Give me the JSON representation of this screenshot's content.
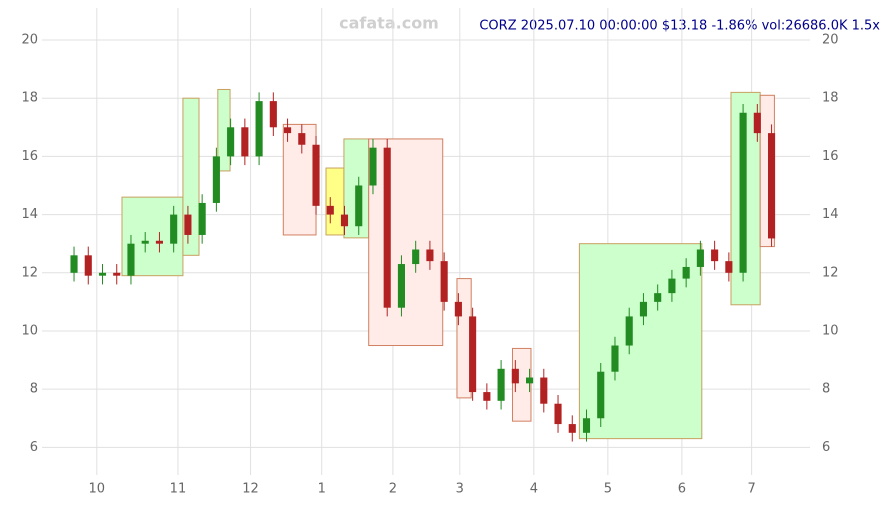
{
  "chart_data": {
    "type": "candlestick",
    "title": "CORZ 2025.07.10 00:00:00 $13.18 -1.86% vol:26686.0K 1.5x",
    "watermark": "cafata.com",
    "x": [
      0,
      1,
      2,
      3,
      4,
      5,
      6,
      7,
      8,
      9,
      10,
      11,
      12,
      13,
      14,
      15,
      16,
      17,
      18,
      19,
      20,
      21,
      22,
      23,
      24,
      25,
      26,
      27,
      28,
      29,
      30,
      31,
      32,
      33,
      34,
      35,
      36,
      37,
      38,
      39,
      40,
      41,
      42,
      43,
      44,
      45,
      46,
      47,
      48,
      49
    ],
    "open": [
      12.0,
      12.6,
      11.9,
      12.0,
      11.9,
      13.0,
      13.1,
      13.0,
      14.0,
      13.3,
      14.4,
      16.0,
      17.0,
      16.0,
      17.9,
      17.0,
      16.8,
      16.4,
      14.3,
      14.0,
      13.6,
      15.0,
      16.3,
      10.8,
      12.3,
      12.8,
      12.4,
      11.0,
      10.5,
      7.9,
      7.6,
      8.7,
      8.2,
      8.4,
      7.5,
      6.8,
      6.5,
      7.0,
      8.6,
      9.5,
      10.5,
      11.0,
      11.3,
      11.8,
      12.2,
      12.8,
      12.4,
      12.0,
      17.5,
      16.8
    ],
    "high": [
      12.9,
      12.9,
      12.3,
      12.3,
      13.3,
      13.4,
      13.4,
      14.3,
      14.3,
      14.7,
      16.3,
      17.3,
      17.3,
      18.2,
      18.2,
      17.3,
      17.1,
      16.7,
      14.6,
      14.3,
      15.3,
      16.6,
      16.6,
      12.6,
      13.1,
      13.1,
      12.7,
      11.3,
      10.8,
      8.2,
      9.0,
      9.0,
      8.7,
      8.7,
      7.8,
      7.1,
      7.3,
      8.9,
      9.8,
      10.8,
      11.3,
      11.6,
      12.1,
      12.5,
      13.1,
      13.1,
      12.7,
      17.8,
      17.8,
      17.1
    ],
    "low": [
      11.7,
      11.6,
      11.6,
      11.6,
      11.6,
      12.7,
      12.7,
      12.7,
      13.0,
      13.0,
      14.1,
      15.7,
      15.7,
      15.7,
      16.7,
      16.5,
      16.1,
      14.0,
      13.7,
      13.3,
      13.3,
      14.7,
      10.5,
      10.5,
      12.0,
      12.1,
      10.7,
      10.2,
      7.6,
      7.3,
      7.3,
      7.9,
      7.9,
      7.2,
      6.5,
      6.2,
      6.2,
      6.7,
      8.3,
      9.2,
      10.2,
      10.7,
      11.0,
      11.5,
      11.9,
      12.1,
      11.7,
      11.7,
      16.5,
      12.9
    ],
    "close": [
      12.6,
      11.9,
      12.0,
      11.9,
      13.0,
      13.1,
      13.0,
      14.0,
      13.3,
      14.4,
      16.0,
      17.0,
      16.0,
      17.9,
      17.0,
      16.8,
      16.4,
      14.3,
      14.0,
      13.6,
      15.0,
      16.3,
      10.8,
      12.3,
      12.8,
      12.4,
      11.0,
      10.5,
      7.9,
      7.6,
      8.7,
      8.2,
      8.4,
      7.5,
      6.8,
      6.5,
      7.0,
      8.6,
      9.5,
      10.5,
      11.0,
      11.3,
      11.8,
      12.2,
      12.8,
      12.4,
      12.0,
      17.5,
      16.8,
      13.18
    ],
    "up_color": "#228b22",
    "down_color": "#b22222",
    "xlim": [
      -2.25,
      51.7
    ],
    "ylim": [
      5.05,
      21.1
    ],
    "xticks": [
      {
        "value": 1.6,
        "label": "10"
      },
      {
        "value": 7.3,
        "label": "11"
      },
      {
        "value": 12.4,
        "label": "12"
      },
      {
        "value": 17.4,
        "label": "1"
      },
      {
        "value": 22.4,
        "label": "2"
      },
      {
        "value": 27.1,
        "label": "3"
      },
      {
        "value": 32.3,
        "label": "4"
      },
      {
        "value": 37.5,
        "label": "5"
      },
      {
        "value": 42.7,
        "label": "6"
      },
      {
        "value": 47.6,
        "label": "7"
      }
    ],
    "yticks": [
      6,
      8,
      10,
      12,
      14,
      16,
      18,
      20
    ],
    "grid": true,
    "zones": [
      {
        "x": [
          3.37,
          7.65
        ],
        "y": [
          11.9,
          14.6
        ],
        "color": "green"
      },
      {
        "x": [
          7.65,
          8.78
        ],
        "y": [
          12.6,
          18.0
        ],
        "color": "green"
      },
      {
        "x": [
          10.1,
          10.96
        ],
        "y": [
          15.5,
          18.3
        ],
        "color": "green"
      },
      {
        "x": [
          14.7,
          17.0
        ],
        "y": [
          13.3,
          17.1
        ],
        "color": "red"
      },
      {
        "x": [
          17.7,
          18.96
        ],
        "y": [
          13.3,
          15.6
        ],
        "color": "yellow"
      },
      {
        "x": [
          18.96,
          20.7
        ],
        "y": [
          13.2,
          16.6
        ],
        "color": "green"
      },
      {
        "x": [
          20.7,
          25.9
        ],
        "y": [
          9.5,
          16.6
        ],
        "color": "red"
      },
      {
        "x": [
          26.9,
          27.9
        ],
        "y": [
          7.7,
          11.8
        ],
        "color": "red"
      },
      {
        "x": [
          30.8,
          32.1
        ],
        "y": [
          6.9,
          9.4
        ],
        "color": "red"
      },
      {
        "x": [
          35.5,
          44.1
        ],
        "y": [
          6.3,
          13.0
        ],
        "color": "green"
      },
      {
        "x": [
          46.15,
          48.2
        ],
        "y": [
          10.9,
          18.2
        ],
        "color": "green"
      },
      {
        "x": [
          48.2,
          49.2
        ],
        "y": [
          12.9,
          18.1
        ],
        "color": "red"
      }
    ]
  }
}
